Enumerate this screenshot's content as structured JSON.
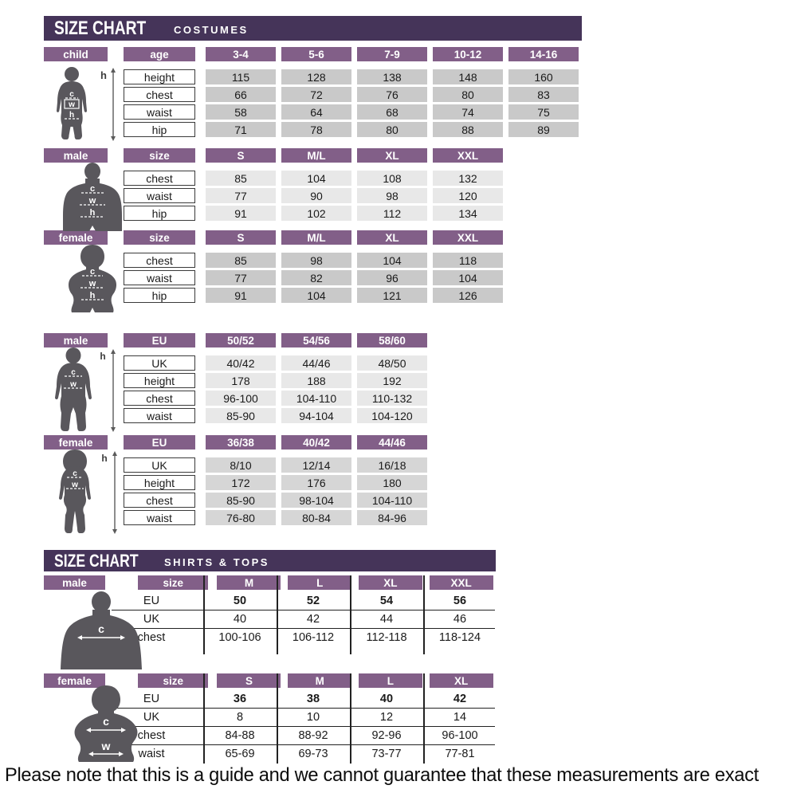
{
  "colors": {
    "band_purple": "#453459",
    "header_purple": "#825f88",
    "cell_gray_dark": "#c9c9c9",
    "cell_gray_light": "#e8e8e8",
    "cell_gray_medium": "#d6d6d6",
    "silhouette_gray": "#59575c"
  },
  "figures": {
    "chest_letter": "c",
    "waist_letter": "w",
    "hip_letter": "h",
    "height_letter": "h"
  },
  "note": "Please note that this is a guide and we cannot guarantee that these measurements are exact",
  "costumes": {
    "title": "SIZE CHART",
    "subtitle": "COSTUMES",
    "child": {
      "gender": "child",
      "attr": "age",
      "shade": "dark",
      "columns": [
        "3-4",
        "5-6",
        "7-9",
        "10-12",
        "14-16"
      ],
      "rows": [
        {
          "label": "height",
          "values": [
            "115",
            "128",
            "138",
            "148",
            "160"
          ]
        },
        {
          "label": "chest",
          "values": [
            "66",
            "72",
            "76",
            "80",
            "83"
          ]
        },
        {
          "label": "waist",
          "values": [
            "58",
            "64",
            "68",
            "74",
            "75"
          ]
        },
        {
          "label": "hip",
          "values": [
            "71",
            "78",
            "80",
            "88",
            "89"
          ]
        }
      ]
    },
    "male": {
      "gender": "male",
      "attr": "size",
      "shade": "light",
      "columns": [
        "S",
        "M/L",
        "XL",
        "XXL"
      ],
      "rows": [
        {
          "label": "chest",
          "values": [
            "85",
            "104",
            "108",
            "132"
          ]
        },
        {
          "label": "waist",
          "values": [
            "77",
            "90",
            "98",
            "120"
          ]
        },
        {
          "label": "hip",
          "values": [
            "91",
            "102",
            "112",
            "134"
          ]
        }
      ]
    },
    "female": {
      "gender": "female",
      "attr": "size",
      "shade": "dark",
      "columns": [
        "S",
        "M/L",
        "XL",
        "XXL"
      ],
      "rows": [
        {
          "label": "chest",
          "values": [
            "85",
            "98",
            "104",
            "118"
          ]
        },
        {
          "label": "waist",
          "values": [
            "77",
            "82",
            "96",
            "104"
          ]
        },
        {
          "label": "hip",
          "values": [
            "91",
            "104",
            "121",
            "126"
          ]
        }
      ]
    },
    "male_eu": {
      "gender": "male",
      "attr": "EU",
      "shade": "light",
      "columns": [
        "50/52",
        "54/56",
        "58/60"
      ],
      "rows": [
        {
          "label": "UK",
          "values": [
            "40/42",
            "44/46",
            "48/50"
          ]
        },
        {
          "label": "height",
          "values": [
            "178",
            "188",
            "192"
          ]
        },
        {
          "label": "chest",
          "values": [
            "96-100",
            "104-110",
            "110-132"
          ]
        },
        {
          "label": "waist",
          "values": [
            "85-90",
            "94-104",
            "104-120"
          ]
        }
      ]
    },
    "female_eu": {
      "gender": "female",
      "attr": "EU",
      "shade": "medium",
      "columns": [
        "36/38",
        "40/42",
        "44/46"
      ],
      "rows": [
        {
          "label": "UK",
          "values": [
            "8/10",
            "12/14",
            "16/18"
          ]
        },
        {
          "label": "height",
          "values": [
            "172",
            "176",
            "180"
          ]
        },
        {
          "label": "chest",
          "values": [
            "85-90",
            "98-104",
            "104-110"
          ]
        },
        {
          "label": "waist",
          "values": [
            "76-80",
            "80-84",
            "84-96"
          ]
        }
      ]
    }
  },
  "shirts": {
    "title": "SIZE CHART",
    "subtitle": "SHIRTS & TOPS",
    "male": {
      "gender": "male",
      "attr": "size",
      "columns": [
        "M",
        "L",
        "XL",
        "XXL"
      ],
      "rows": [
        {
          "label": "EU",
          "bold": true,
          "values": [
            "50",
            "52",
            "54",
            "56"
          ]
        },
        {
          "label": "UK",
          "values": [
            "40",
            "42",
            "44",
            "46"
          ]
        },
        {
          "label": "chest",
          "values": [
            "100-106",
            "106-112",
            "112-118",
            "118-124"
          ]
        }
      ]
    },
    "female": {
      "gender": "female",
      "attr": "size",
      "columns": [
        "S",
        "M",
        "L",
        "XL"
      ],
      "rows": [
        {
          "label": "EU",
          "bold": true,
          "values": [
            "36",
            "38",
            "40",
            "42"
          ]
        },
        {
          "label": "UK",
          "values": [
            "8",
            "10",
            "12",
            "14"
          ]
        },
        {
          "label": "chest",
          "values": [
            "84-88",
            "88-92",
            "92-96",
            "96-100"
          ]
        },
        {
          "label": "waist",
          "values": [
            "65-69",
            "69-73",
            "73-77",
            "77-81"
          ]
        }
      ]
    }
  }
}
